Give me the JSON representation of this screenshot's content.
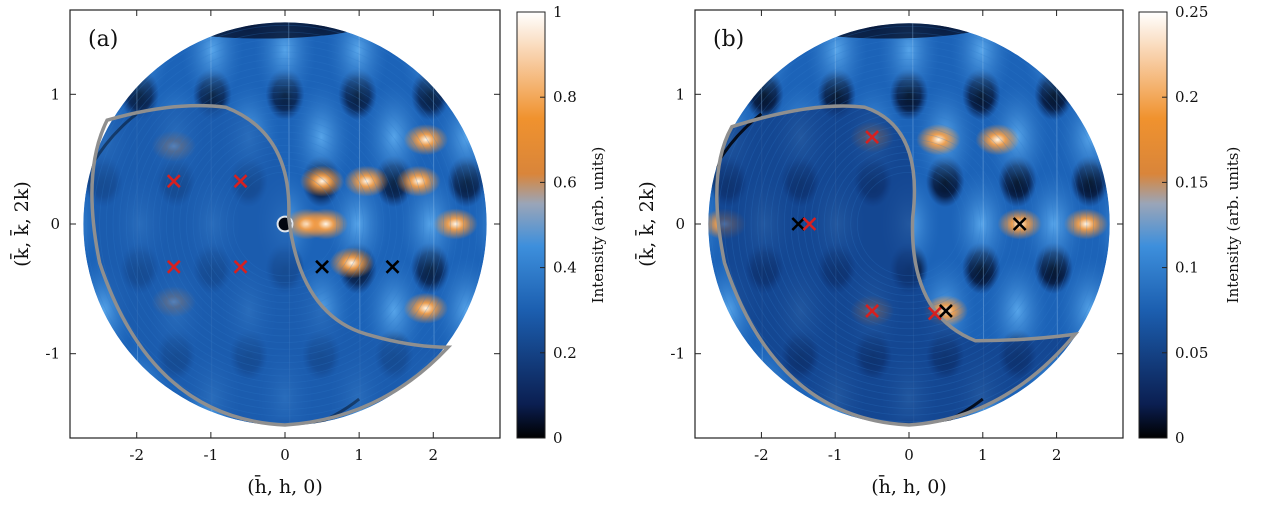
{
  "chart_data": [
    {
      "type": "heatmap",
      "panel_label": "(a)",
      "xlabel": "(h̄, h, 0)",
      "ylabel": "(k̄, k̄, 2k)",
      "xlim": [
        -2.9,
        2.9
      ],
      "ylim": [
        -1.65,
        1.65
      ],
      "xticks": [
        -2,
        -1,
        0,
        1,
        2
      ],
      "xtick_labels": [
        "-2",
        "-1",
        "0",
        "1",
        "2"
      ],
      "yticks": [
        -1,
        0,
        1
      ],
      "ytick_labels": [
        "-1",
        "0",
        "1"
      ],
      "colorbar": {
        "label": "Intensity (arb. units)",
        "range": [
          0,
          1
        ],
        "ticks": [
          0,
          0.2,
          0.4,
          0.6,
          0.8,
          1
        ],
        "tick_labels": [
          "0",
          "0.2",
          "0.4",
          "0.6",
          "0.8",
          "1"
        ]
      },
      "markers": [
        {
          "color": "red",
          "x": -1.5,
          "y": 0.33
        },
        {
          "color": "red",
          "x": -0.6,
          "y": 0.33
        },
        {
          "color": "red",
          "x": -1.5,
          "y": -0.33
        },
        {
          "color": "red",
          "x": -0.6,
          "y": -0.33
        },
        {
          "color": "black",
          "x": 0.5,
          "y": -0.33
        },
        {
          "color": "black",
          "x": 1.45,
          "y": -0.33
        }
      ]
    },
    {
      "type": "heatmap",
      "panel_label": "(b)",
      "xlabel": "(h̄, h, 0)",
      "ylabel": "(k̄, k̄, 2k)",
      "xlim": [
        -2.9,
        2.9
      ],
      "ylim": [
        -1.65,
        1.65
      ],
      "xticks": [
        -2,
        -1,
        0,
        1,
        2
      ],
      "xtick_labels": [
        "-2",
        "-1",
        "0",
        "1",
        "2"
      ],
      "yticks": [
        -1,
        0,
        1
      ],
      "ytick_labels": [
        "-1",
        "0",
        "1"
      ],
      "colorbar": {
        "label": "Intensity (arb. units)",
        "range": [
          0,
          0.25
        ],
        "ticks": [
          0,
          0.05,
          0.1,
          0.15,
          0.2,
          0.25
        ],
        "tick_labels": [
          "0",
          "0.05",
          "0.1",
          "0.15",
          "0.2",
          "0.25"
        ]
      },
      "markers": [
        {
          "color": "red",
          "x": -0.5,
          "y": 0.67
        },
        {
          "color": "black",
          "x": -1.5,
          "y": 0.0
        },
        {
          "color": "red",
          "x": -1.35,
          "y": 0.0
        },
        {
          "color": "black",
          "x": 1.5,
          "y": 0.0
        },
        {
          "color": "red",
          "x": -0.5,
          "y": -0.67
        },
        {
          "color": "red",
          "x": 0.35,
          "y": -0.69
        },
        {
          "color": "black",
          "x": 0.5,
          "y": -0.67
        }
      ]
    }
  ],
  "colors": {
    "map_background": "#1c63b8",
    "map_light": "#3f8fdc",
    "map_dark": "#07173a",
    "hotspot": "#f08a2c",
    "contour": "#8f8f8f"
  }
}
